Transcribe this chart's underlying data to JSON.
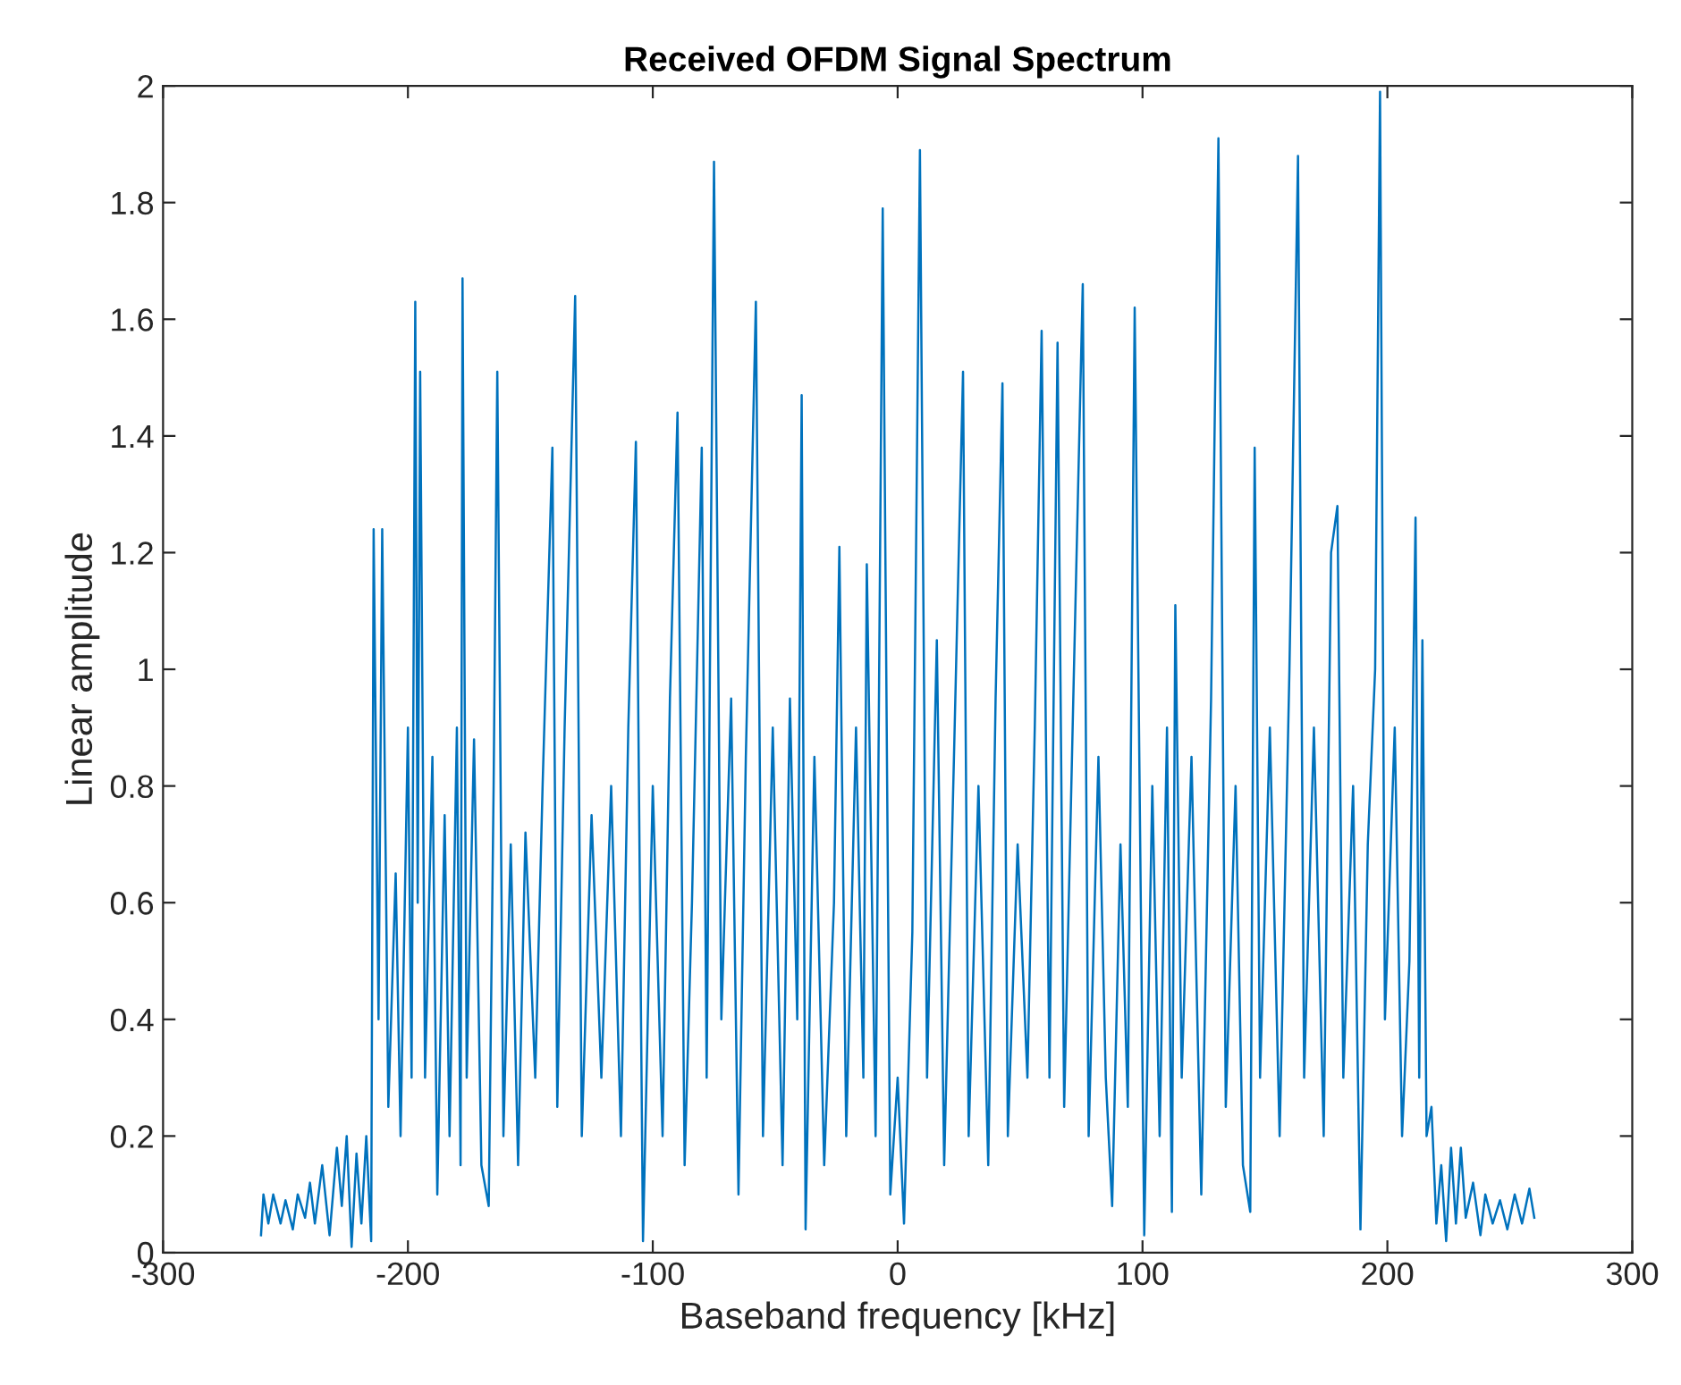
{
  "chart_data": {
    "type": "line",
    "title": "Received OFDM Signal Spectrum",
    "xlabel": "Baseband frequency [kHz]",
    "ylabel": "Linear amplitude",
    "xlim": [
      -300,
      300
    ],
    "ylim": [
      0,
      2
    ],
    "xticks": [
      -300,
      -200,
      -100,
      0,
      100,
      200,
      300
    ],
    "yticks": [
      0,
      0.2,
      0.4,
      0.6,
      0.8,
      1,
      1.2,
      1.4,
      1.6,
      1.8,
      2
    ],
    "marker": "none",
    "line_style": "solid",
    "series": [
      {
        "color": "#0072bd",
        "x": [
          -260,
          -259,
          -257,
          -255,
          -252,
          -250,
          -247,
          -245,
          -242,
          -240,
          -238,
          -235,
          -232,
          -229,
          -227,
          -225,
          -223,
          -221,
          -219,
          -217,
          -215,
          -214,
          -212,
          -210.5,
          -208,
          -205,
          -203,
          -200,
          -198.5,
          -197,
          -196,
          -195,
          -193,
          -190,
          -188,
          -185,
          -183,
          -180,
          -178.5,
          -177.7,
          -176,
          -173,
          -170,
          -167,
          -165,
          -163.5,
          -161,
          -158,
          -155,
          -152,
          -148,
          -145,
          -141,
          -139,
          -136,
          -131.7,
          -129,
          -125,
          -121,
          -117,
          -113,
          -110,
          -106.9,
          -104,
          -100,
          -96,
          -93,
          -89.9,
          -87,
          -84,
          -80,
          -78,
          -75,
          -72,
          -68,
          -65,
          -62,
          -57.9,
          -55,
          -51,
          -47,
          -44,
          -41,
          -39.2,
          -37.6,
          -34,
          -30,
          -26,
          -23.8,
          -21,
          -17,
          -14,
          -12.6,
          -9,
          -6.1,
          -3,
          0,
          2.6,
          6,
          9.1,
          12,
          16,
          19,
          23,
          26.7,
          29,
          33,
          37,
          40,
          42.8,
          45,
          49,
          53,
          56,
          58.8,
          62,
          65.3,
          68,
          72,
          75.6,
          78,
          82,
          85,
          87.6,
          91,
          94,
          96.8,
          100.7,
          104,
          107,
          110,
          112,
          113.4,
          116,
          120,
          124,
          128,
          131,
          134,
          138,
          141,
          144,
          145.8,
          148,
          152,
          156,
          160,
          163.5,
          166,
          170,
          174,
          177,
          179.6,
          182,
          186,
          189,
          192,
          195,
          197,
          199,
          203,
          206,
          209,
          211.5,
          213,
          214.3,
          216,
          218,
          220,
          222,
          224,
          226,
          228,
          230,
          232,
          235,
          238,
          240,
          243,
          246,
          249,
          252,
          255,
          258,
          260
        ],
        "values": [
          0.03,
          0.1,
          0.05,
          0.1,
          0.05,
          0.09,
          0.04,
          0.1,
          0.06,
          0.12,
          0.05,
          0.15,
          0.03,
          0.18,
          0.08,
          0.2,
          0.01,
          0.17,
          0.05,
          0.2,
          0.02,
          1.24,
          0.4,
          1.24,
          0.25,
          0.65,
          0.2,
          0.9,
          0.3,
          1.63,
          0.6,
          1.51,
          0.3,
          0.85,
          0.1,
          0.75,
          0.2,
          0.9,
          0.15,
          1.67,
          0.3,
          0.88,
          0.15,
          0.08,
          0.8,
          1.51,
          0.2,
          0.7,
          0.15,
          0.72,
          0.3,
          0.8,
          1.38,
          0.25,
          0.9,
          1.64,
          0.2,
          0.75,
          0.3,
          0.8,
          0.2,
          0.9,
          1.39,
          0.02,
          0.8,
          0.2,
          0.95,
          1.44,
          0.15,
          0.6,
          1.38,
          0.3,
          1.87,
          0.4,
          0.95,
          0.1,
          0.85,
          1.63,
          0.2,
          0.9,
          0.15,
          0.95,
          0.4,
          1.47,
          0.04,
          0.85,
          0.15,
          0.6,
          1.21,
          0.2,
          0.9,
          0.3,
          1.18,
          0.2,
          1.79,
          0.1,
          0.3,
          0.05,
          0.55,
          1.89,
          0.3,
          1.05,
          0.15,
          0.85,
          1.51,
          0.2,
          0.8,
          0.15,
          0.95,
          1.49,
          0.2,
          0.7,
          0.3,
          0.9,
          1.58,
          0.3,
          1.56,
          0.25,
          1.0,
          1.66,
          0.2,
          0.85,
          0.3,
          0.08,
          0.7,
          0.25,
          1.62,
          0.03,
          0.8,
          0.2,
          0.9,
          0.07,
          1.11,
          0.3,
          0.85,
          0.1,
          0.95,
          1.91,
          0.25,
          0.8,
          0.15,
          0.07,
          1.38,
          0.3,
          0.9,
          0.2,
          1.0,
          1.88,
          0.3,
          0.9,
          0.2,
          1.2,
          1.28,
          0.3,
          0.8,
          0.04,
          0.7,
          1.0,
          1.99,
          0.4,
          0.9,
          0.2,
          0.5,
          1.26,
          0.3,
          1.05,
          0.2,
          0.25,
          0.05,
          0.15,
          0.02,
          0.18,
          0.05,
          0.18,
          0.06,
          0.12,
          0.03,
          0.1,
          0.05,
          0.09,
          0.04,
          0.1,
          0.05,
          0.11,
          0.06
        ]
      }
    ]
  }
}
